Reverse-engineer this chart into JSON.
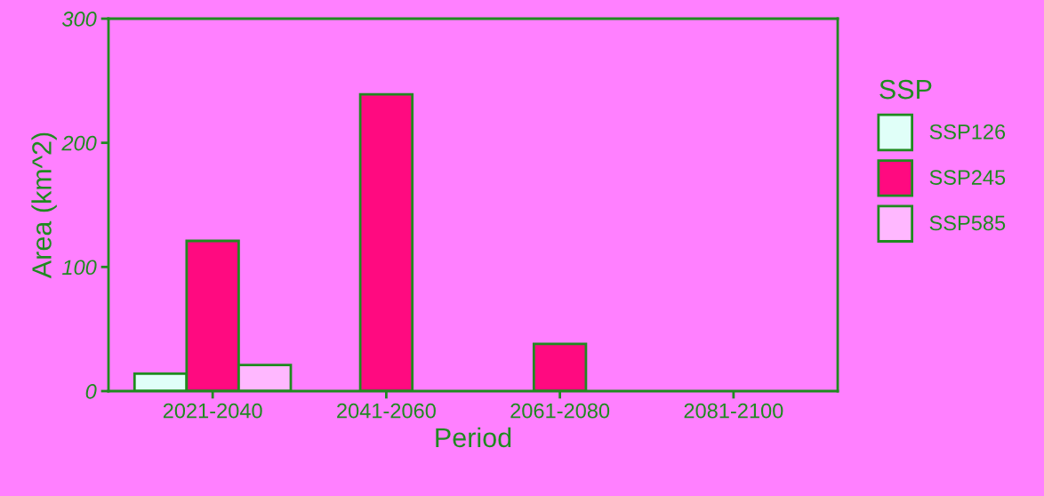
{
  "chart_data": {
    "type": "bar",
    "xlabel": "Period",
    "ylabel": "Area (km^2)",
    "legend_title": "SSP",
    "legend": "right",
    "grid": false,
    "categories": [
      "2021-2040",
      "2041-2060",
      "2061-2080",
      "2081-2100"
    ],
    "series": [
      {
        "name": "SSP126",
        "color": "#e0fff8",
        "values": [
          14,
          null,
          null,
          null
        ]
      },
      {
        "name": "SSP245",
        "color": "#ff0a80",
        "values": [
          121,
          239,
          38,
          null
        ]
      },
      {
        "name": "SSP585",
        "color": "#ffb8ff",
        "values": [
          21,
          null,
          null,
          null
        ]
      }
    ],
    "ylim": [
      0,
      300
    ],
    "yticks": [
      0,
      100,
      200,
      300
    ]
  }
}
